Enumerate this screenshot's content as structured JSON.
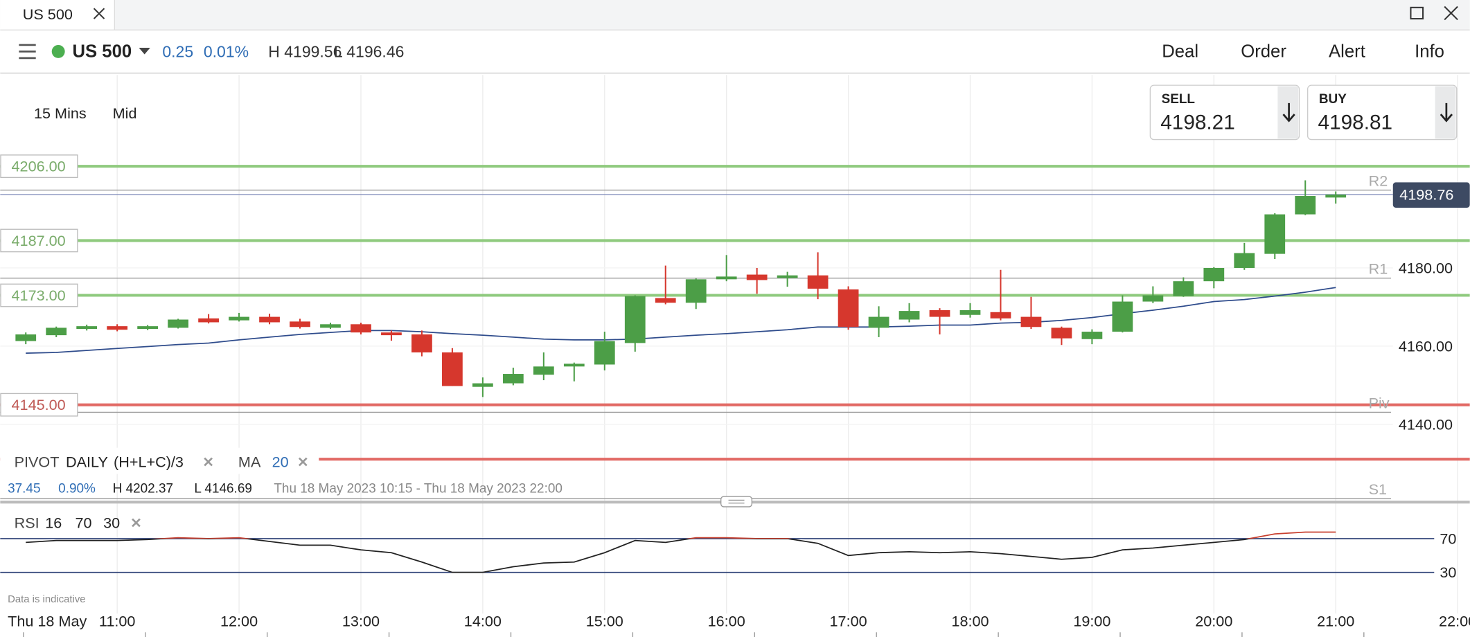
{
  "tab": {
    "title": "US 500"
  },
  "toolbar": {
    "instrument": "US 500",
    "change": "0.25",
    "change_pct": "0.01%",
    "high": "H 4199.56",
    "low": "L 4196.46",
    "menu": [
      "Deal",
      "Order",
      "Alert",
      "Info"
    ]
  },
  "quote": {
    "sell_label": "SELL",
    "sell": "4198.21",
    "buy_label": "BUY",
    "buy": "4198.81"
  },
  "settings": {
    "interval": "15 Mins",
    "price": "Mid"
  },
  "indicators": {
    "pivot": "PIVOT",
    "pivot_period": "DAILY",
    "pivot_formula": "(H+L+C)/3",
    "ma_period": "20"
  },
  "stats": {
    "change": "37.45",
    "change_pct": "0.90%",
    "high": "H 4202.37",
    "low": "L 4146.69",
    "range": "Thu 18 May 2023 10:15 - Thu 18 May 2023 22:00"
  },
  "footer": {
    "note": "Data is indicative",
    "date": "Thu 18 May"
  },
  "chart_data": [
    {
      "type": "candlestick",
      "x": [
        10.25,
        10.5,
        10.75,
        11,
        11.25,
        11.5,
        11.75,
        12,
        12.25,
        12.5,
        12.75,
        13,
        13.25,
        13.5,
        13.75,
        14,
        14.25,
        14.5,
        14.75,
        15,
        15.25,
        15.5,
        15.75,
        16,
        16.25,
        16.5,
        16.75,
        17,
        17.25,
        17.5,
        17.75,
        18,
        18.25,
        18.5,
        18.75,
        19,
        19.25,
        19.5,
        19.75,
        20,
        20.25,
        20.5,
        20.75,
        21
      ],
      "open": [
        4161.3,
        4162.8,
        4164.4,
        4165.1,
        4164.4,
        4164.7,
        4167.1,
        4166.6,
        4167.5,
        4166.3,
        4164.7,
        4165.6,
        4163.5,
        4163,
        4158.4,
        4149.6,
        4150.5,
        4152.7,
        4154.8,
        4155.3,
        4160.8,
        4172.3,
        4171.1,
        4177.1,
        4178.3,
        4177.4,
        4178.1,
        4174.5,
        4164.7,
        4166.8,
        4169.2,
        4168,
        4168.7,
        4167.5,
        4164.7,
        4161.8,
        4163.7,
        4171.4,
        4172.8,
        4176.6,
        4180,
        4183.6,
        4193.7,
        4198
      ],
      "high": [
        4163.5,
        4165,
        4165.5,
        4165.6,
        4165.4,
        4167,
        4168.2,
        4168.5,
        4168.3,
        4167,
        4166,
        4166,
        4164,
        4164,
        4159.5,
        4152,
        4154.5,
        4158.4,
        4155.8,
        4163.7,
        4173,
        4180.6,
        4177.3,
        4183.3,
        4180,
        4179,
        4184,
        4175.3,
        4170.2,
        4171,
        4169.7,
        4171,
        4179.5,
        4172.6,
        4165,
        4164.3,
        4173,
        4175.3,
        4177.6,
        4180.2,
        4186.4,
        4194,
        4202.4,
        4199.56
      ],
      "low": [
        4160.5,
        4162.3,
        4164,
        4163.8,
        4164.1,
        4164.5,
        4165.8,
        4166.3,
        4165.6,
        4164.5,
        4164.4,
        4163,
        4161.4,
        4157.4,
        4149.8,
        4147,
        4150,
        4151.3,
        4151,
        4153.8,
        4158.6,
        4170.7,
        4169.5,
        4176.6,
        4173.4,
        4175.2,
        4172,
        4164.2,
        4162.3,
        4166.1,
        4163,
        4167.3,
        4166.6,
        4164.4,
        4160.3,
        4160.5,
        4163.5,
        4171,
        4172.6,
        4174.8,
        4179.5,
        4182.3,
        4193.5,
        4196.46
      ],
      "close": [
        4163,
        4164.7,
        4165.1,
        4164.2,
        4165.1,
        4166.8,
        4166.1,
        4167.5,
        4166.1,
        4164.9,
        4165.6,
        4163.5,
        4162.8,
        4158.4,
        4149.8,
        4150.5,
        4152.9,
        4154.8,
        4155.5,
        4161.3,
        4172.8,
        4171.1,
        4177.1,
        4177.8,
        4176.9,
        4178.1,
        4174.7,
        4164.9,
        4167.5,
        4169,
        4167.5,
        4169.2,
        4167.1,
        4164.9,
        4162,
        4163.7,
        4171.4,
        4173,
        4176.6,
        4180,
        4183.8,
        4193.7,
        4198.4,
        4198.76
      ],
      "up_color": "#4c9e47",
      "down_color": "#d6372d",
      "series": [
        {
          "name": "MA",
          "color": "#2f4c8c",
          "values": [
            4158.2,
            4158.4,
            4158.9,
            4159.4,
            4159.9,
            4160.4,
            4160.8,
            4161.6,
            4162.3,
            4163,
            4163.5,
            4164,
            4164,
            4163.7,
            4163.2,
            4162.8,
            4162.3,
            4161.8,
            4161.6,
            4161.6,
            4161.8,
            4162.3,
            4162.8,
            4163.2,
            4163.7,
            4164.2,
            4164.9,
            4164.9,
            4164.9,
            4165.1,
            4165.4,
            4165.4,
            4165.9,
            4166.1,
            4166.6,
            4167.3,
            4168.3,
            4169.2,
            4170.2,
            4171.4,
            4171.9,
            4172.8,
            4173.8,
            4175
          ]
        }
      ],
      "xlim": [
        10.04,
        22.1
      ],
      "xticks": [
        {
          "value": 11,
          "label": "11:00"
        },
        {
          "value": 12,
          "label": "12:00"
        },
        {
          "value": 13,
          "label": "13:00"
        },
        {
          "value": 14,
          "label": "14:00"
        },
        {
          "value": 15,
          "label": "15:00"
        },
        {
          "value": 16,
          "label": "16:00"
        },
        {
          "value": 17,
          "label": "17:00"
        },
        {
          "value": 18,
          "label": "18:00"
        },
        {
          "value": 19,
          "label": "19:00"
        },
        {
          "value": 20,
          "label": "20:00"
        },
        {
          "value": 21,
          "label": "21:00"
        },
        {
          "value": 22,
          "label": "22:00"
        }
      ],
      "ylim": [
        4119.5,
        4229.3
      ],
      "yticks": [
        {
          "value": 4140,
          "label": "4140.00"
        },
        {
          "value": 4160,
          "label": "4160.00"
        },
        {
          "value": 4180,
          "label": "4180.00"
        }
      ],
      "last_price": {
        "value": 4198.76,
        "label": "4198.76",
        "color": "#3d4a63"
      },
      "pivots": [
        {
          "name": "R2",
          "value": 4199.9
        },
        {
          "name": "R1",
          "value": 4177.4
        },
        {
          "name": "Piv",
          "value": 4143.1
        },
        {
          "name": "S1",
          "value": 4121
        }
      ],
      "levels": [
        {
          "value": 4206,
          "label": "4206.00",
          "color": "#8fca7e"
        },
        {
          "value": 4187,
          "label": "4187.00",
          "color": "#8fca7e"
        },
        {
          "value": 4173,
          "label": "4173.00",
          "color": "#8fca7e"
        },
        {
          "value": 4145,
          "label": "4145.00",
          "color": "#e26a65"
        },
        {
          "value": 4131.1,
          "color": "#e26a65"
        }
      ]
    },
    {
      "type": "line",
      "series": [
        {
          "name": "RSI",
          "color": "#222222",
          "values": [
            65.6,
            67.8,
            67.8,
            67.8,
            68.9,
            71.1,
            70,
            71.1,
            66.7,
            62.2,
            62.2,
            56.7,
            53.3,
            42.2,
            30,
            30,
            36.7,
            41.1,
            42.2,
            53.3,
            67.8,
            65.6,
            71.1,
            71.1,
            70,
            70,
            64.4,
            50,
            53.3,
            54.4,
            53.3,
            54.4,
            52.2,
            48.9,
            45.6,
            47.8,
            56.7,
            58.9,
            62.2,
            65.6,
            68.9,
            75.6,
            77.8,
            77.8
          ]
        }
      ],
      "period": 16,
      "overbought_color": "#c8402f",
      "level_color": "#2b3f75",
      "ylim": [
        -12,
        103
      ],
      "yticks": [
        30,
        70
      ]
    }
  ]
}
